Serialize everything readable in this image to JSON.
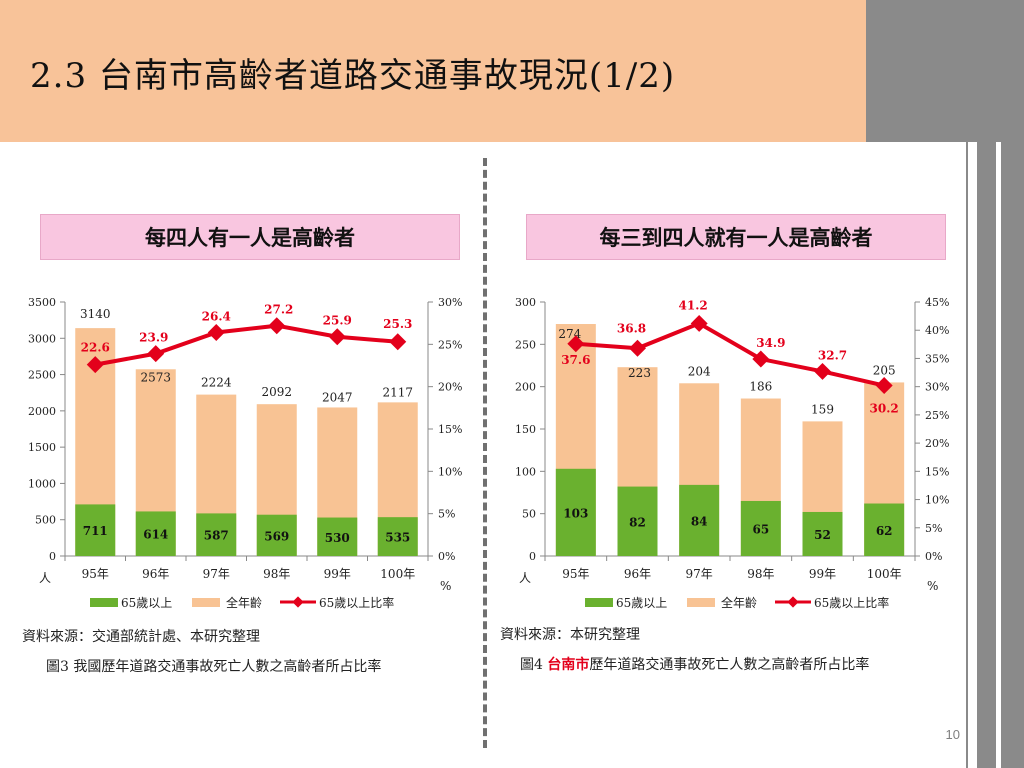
{
  "slide": {
    "title": "2.3 台南市高齡者道路交通事故現況(1/2)",
    "page_number": "10"
  },
  "left": {
    "banner": "每四人有一人是高齡者",
    "source": "資料來源：交通部統計處、本研究整理",
    "caption": "圖3 我國歷年道路交通事故死亡人數之高齡者所占比率"
  },
  "right": {
    "banner": "每三到四人就有一人是高齡者",
    "source": "資料來源：本研究整理",
    "caption_prefix": "圖4 ",
    "caption_highlight": "台南市",
    "caption_suffix": "歷年道路交通事故死亡人數之高齡者所占比率"
  },
  "colors": {
    "elderly_bar": "#6ab12f",
    "all_ages_bar": "#f8c394",
    "ratio_line": "#e3001b",
    "header_bg": "#f8c399",
    "banner_bg": "#f9c6e0"
  },
  "chart_data": [
    {
      "type": "bar",
      "categories": [
        "95年",
        "96年",
        "97年",
        "98年",
        "99年",
        "100年"
      ],
      "series": [
        {
          "name": "65歲以上",
          "values": [
            711,
            614,
            587,
            569,
            530,
            535
          ]
        },
        {
          "name": "全年齡",
          "values": [
            3140,
            2573,
            2224,
            2092,
            2047,
            2117
          ]
        },
        {
          "name": "65歲以上比率",
          "values": [
            22.6,
            23.9,
            26.4,
            27.2,
            25.9,
            25.3
          ]
        }
      ],
      "y_left": {
        "label": "人",
        "ticks": [
          "0",
          "500",
          "1000",
          "1500",
          "2000",
          "2500",
          "3000",
          "3500"
        ],
        "ylim": [
          0,
          3500
        ]
      },
      "y_right": {
        "label": "%",
        "ticks": [
          "0%",
          "5%",
          "10%",
          "15%",
          "20%",
          "25%",
          "30%"
        ],
        "ylim": [
          0,
          30
        ]
      },
      "legend": "bottom"
    },
    {
      "type": "bar",
      "categories": [
        "95年",
        "96年",
        "97年",
        "98年",
        "99年",
        "100年"
      ],
      "series": [
        {
          "name": "65歲以上",
          "values": [
            103,
            82,
            84,
            65,
            52,
            62
          ]
        },
        {
          "name": "全年齡",
          "values": [
            274,
            223,
            204,
            186,
            159,
            205
          ]
        },
        {
          "name": "65歲以上比率",
          "values": [
            37.6,
            36.8,
            41.2,
            34.9,
            32.7,
            30.2
          ]
        }
      ],
      "y_left": {
        "label": "人",
        "ticks": [
          "0",
          "50",
          "100",
          "150",
          "200",
          "250",
          "300"
        ],
        "ylim": [
          0,
          300
        ]
      },
      "y_right": {
        "label": "%",
        "ticks": [
          "0%",
          "5%",
          "10%",
          "15%",
          "20%",
          "25%",
          "30%",
          "35%",
          "40%",
          "45%"
        ],
        "ylim": [
          0,
          45
        ]
      },
      "legend": "bottom"
    }
  ]
}
